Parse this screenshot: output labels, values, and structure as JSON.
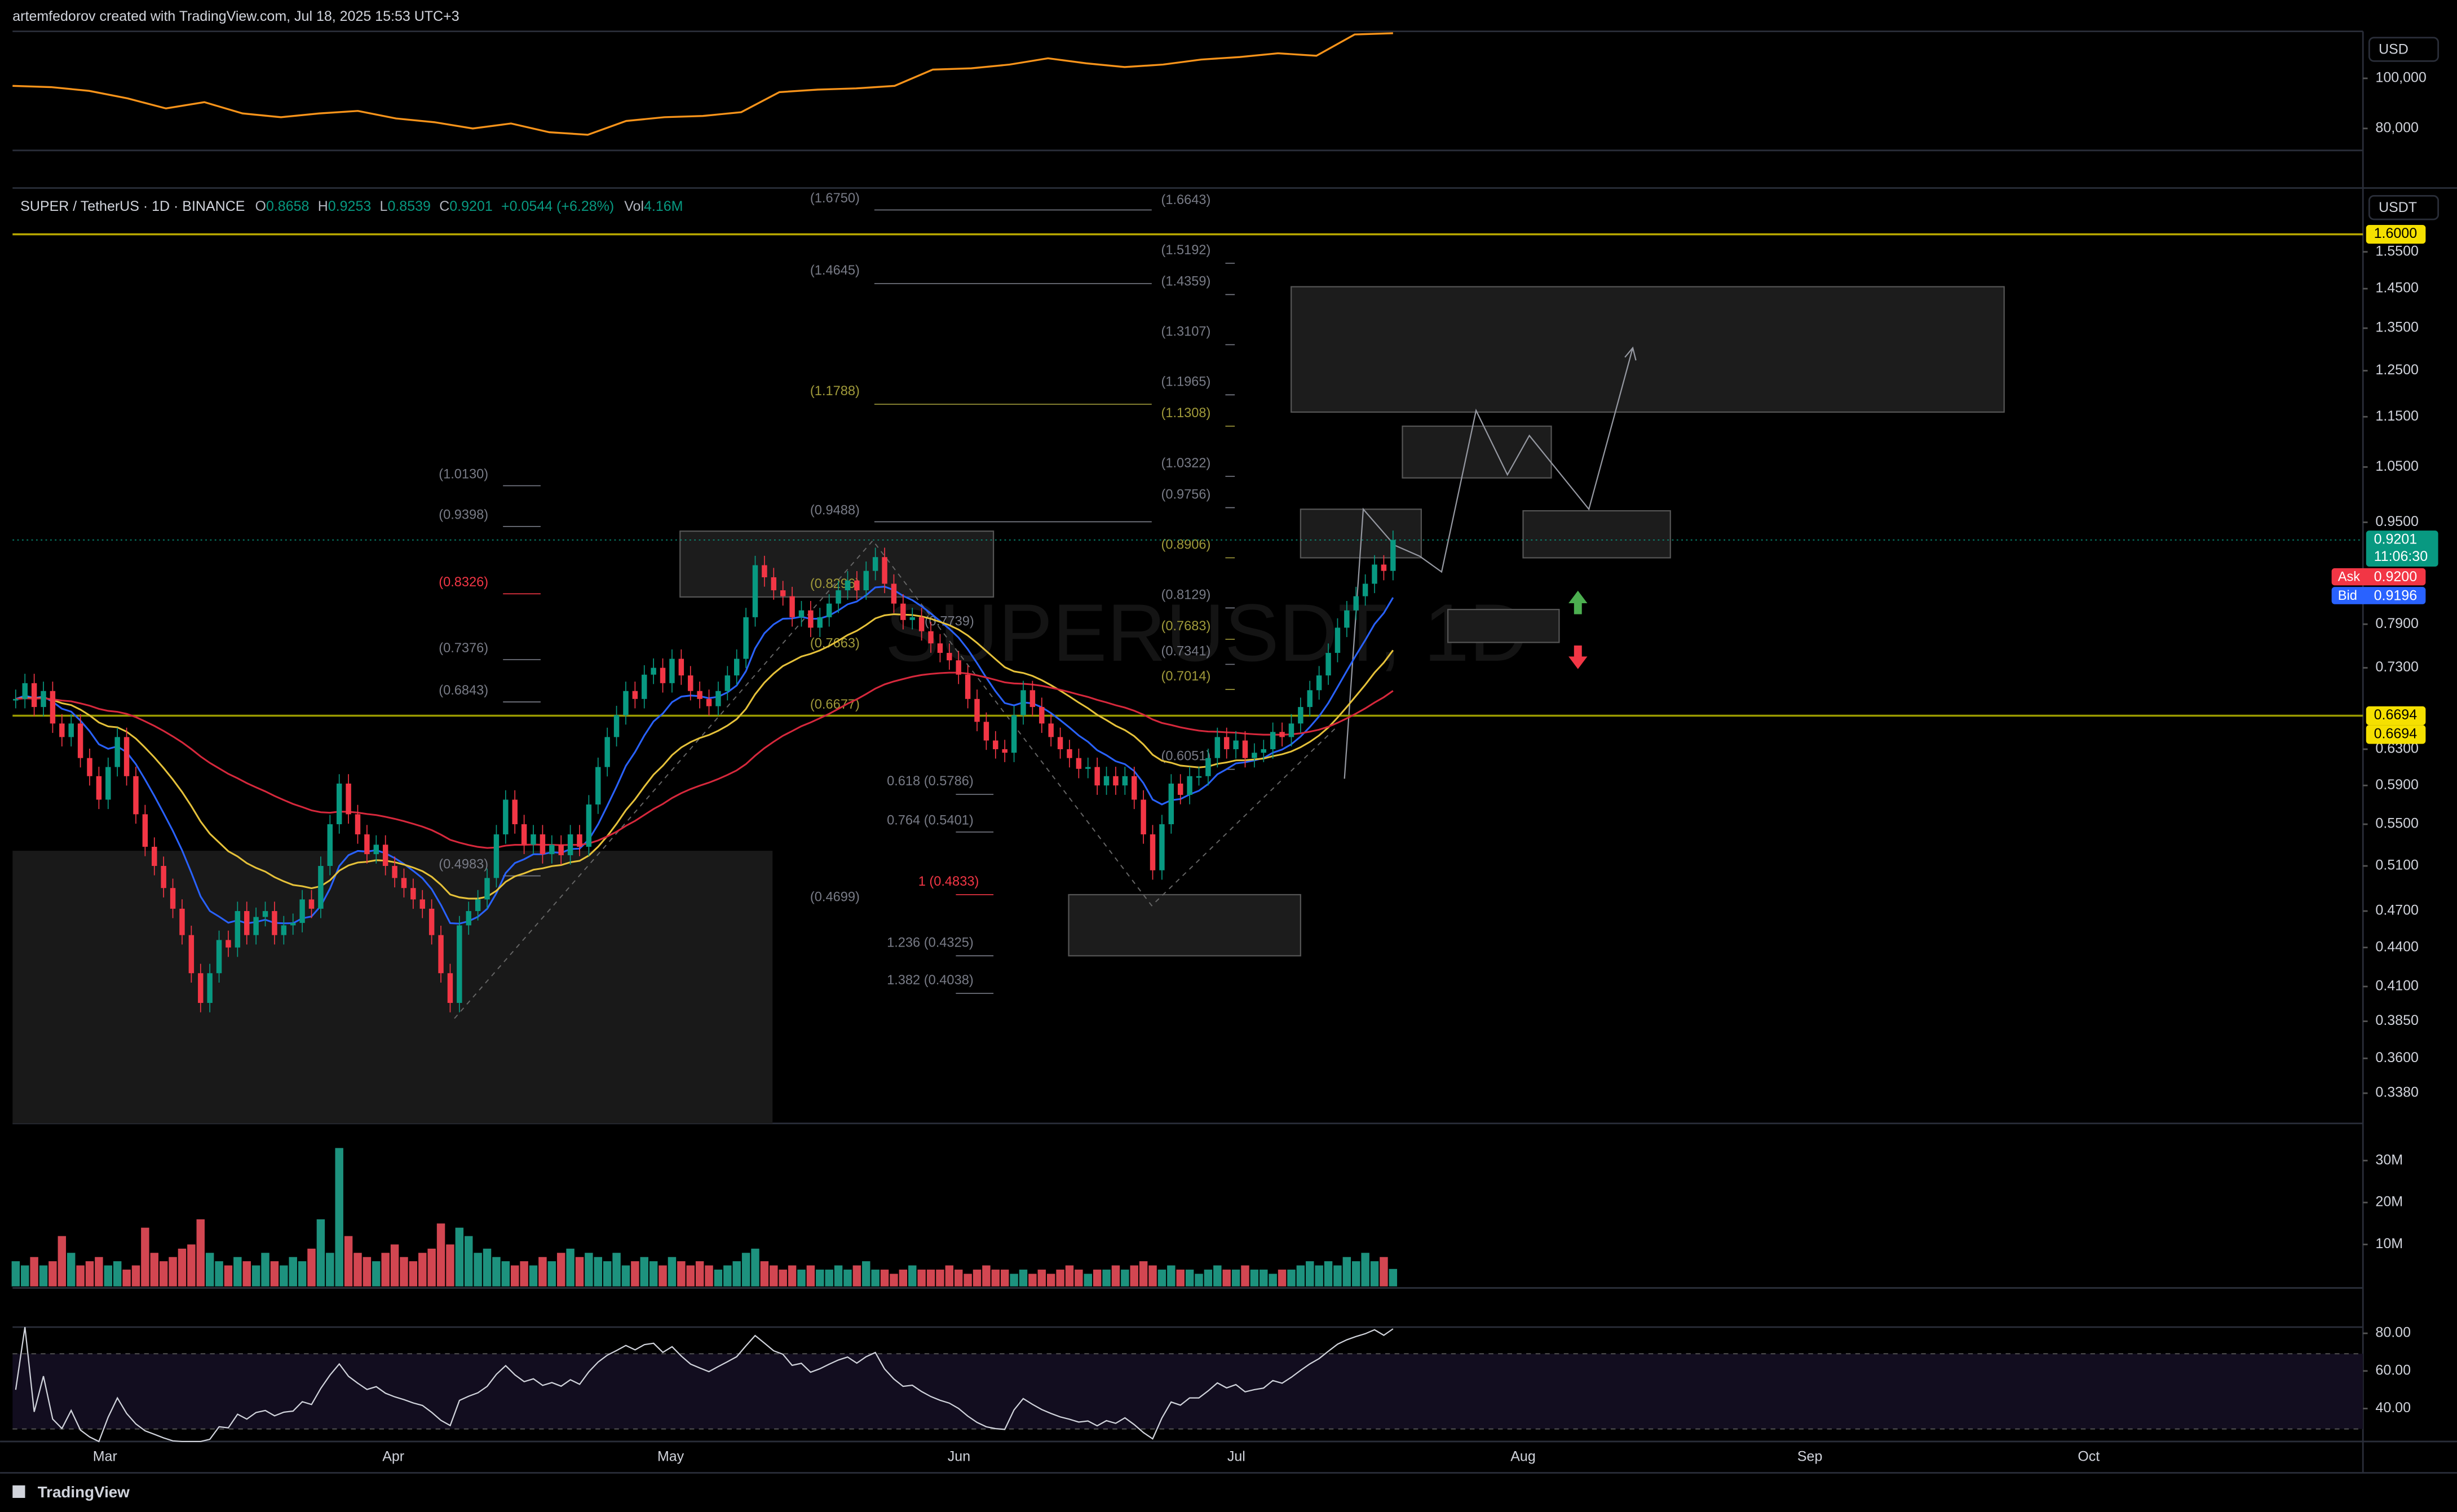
{
  "header": {
    "credit": "artemfedorov created with TradingView.com, Jul 18, 2025 15:53 UTC+3"
  },
  "compare": {
    "type": "line",
    "currency": "USD",
    "color": "#f7931a",
    "ylim": [
      71250,
      118750
    ],
    "yticks": [
      {
        "value": 100000,
        "label": "100,000"
      },
      {
        "value": 80000,
        "label": "80,000"
      }
    ],
    "values": [
      97000,
      96500,
      95000,
      92000,
      88000,
      90500,
      86000,
      84500,
      86000,
      87000,
      84000,
      82500,
      80000,
      82000,
      78500,
      77500,
      83000,
      84500,
      85000,
      86500,
      94500,
      95500,
      96000,
      97000,
      103500,
      104000,
      105500,
      108000,
      106000,
      104500,
      105500,
      107500,
      108500,
      110000,
      109000,
      117500,
      118000
    ]
  },
  "chart_data": {
    "type": "candlestick",
    "title": "SUPER / TetherUS · 1D · BINANCE",
    "legend": {
      "o": "O",
      "ov": "0.8658",
      "h": "H",
      "hv": "0.9253",
      "l": "L",
      "lv": "0.8539",
      "c": "C",
      "cv": "0.9201",
      "chg": "+0.0544 (+6.28%)",
      "vol": "Vol",
      "volv": "4.16M"
    },
    "watermark": "SUPERUSDT, 1D",
    "currency": "USDT",
    "log_scale": true,
    "up_color": "#089981",
    "down_color": "#f23645",
    "close": [
      0.69,
      0.71,
      0.68,
      0.7,
      0.66,
      0.644,
      0.66,
      0.62,
      0.6,
      0.575,
      0.61,
      0.644,
      0.6,
      0.56,
      0.528,
      0.51,
      0.49,
      0.472,
      0.45,
      0.42,
      0.398,
      0.42,
      0.446,
      0.44,
      0.47,
      0.45,
      0.465,
      0.47,
      0.45,
      0.458,
      0.46,
      0.48,
      0.472,
      0.51,
      0.55,
      0.592,
      0.56,
      0.54,
      0.521,
      0.53,
      0.51,
      0.499,
      0.49,
      0.48,
      0.472,
      0.45,
      0.42,
      0.398,
      0.458,
      0.47,
      0.48,
      0.499,
      0.54,
      0.575,
      0.55,
      0.53,
      0.54,
      0.521,
      0.53,
      0.52,
      0.54,
      0.528,
      0.57,
      0.61,
      0.644,
      0.67,
      0.7,
      0.69,
      0.721,
      0.73,
      0.71,
      0.742,
      0.72,
      0.7,
      0.69,
      0.681,
      0.7,
      0.72,
      0.742,
      0.8,
      0.879,
      0.86,
      0.84,
      0.831,
      0.8,
      0.81,
      0.785,
      0.8,
      0.82,
      0.84,
      0.855,
      0.84,
      0.87,
      0.892,
      0.85,
      0.82,
      0.796,
      0.8,
      0.78,
      0.763,
      0.75,
      0.74,
      0.721,
      0.69,
      0.662,
      0.64,
      0.63,
      0.626,
      0.67,
      0.701,
      0.68,
      0.66,
      0.644,
      0.63,
      0.62,
      0.608,
      0.61,
      0.59,
      0.6,
      0.59,
      0.6,
      0.575,
      0.54,
      0.506,
      0.55,
      0.592,
      0.58,
      0.6,
      0.6,
      0.62,
      0.644,
      0.63,
      0.64,
      0.62,
      0.626,
      0.63,
      0.65,
      0.644,
      0.66,
      0.68,
      0.701,
      0.72,
      0.75,
      0.785,
      0.81,
      0.831,
      0.85,
      0.88,
      0.87,
      0.9201
    ],
    "volume": [
      6,
      5,
      7,
      5,
      6,
      12,
      8,
      5,
      6,
      7,
      5,
      6,
      4,
      5,
      14,
      8,
      6,
      7,
      9,
      10,
      16,
      8,
      6,
      5,
      7,
      6,
      5,
      8,
      6,
      5,
      7,
      6,
      9,
      16,
      8,
      33,
      12,
      8,
      7,
      6,
      8,
      10,
      7,
      6,
      8,
      9,
      15,
      10,
      14,
      12,
      8,
      9,
      7,
      6,
      5,
      6,
      5,
      7,
      6,
      8,
      9,
      7,
      8,
      7,
      6,
      8,
      5,
      6,
      7,
      6,
      5,
      7,
      6,
      5,
      6,
      5,
      4,
      5,
      6,
      8,
      9,
      6,
      5,
      4,
      5,
      4,
      5,
      4,
      4,
      5,
      4,
      5,
      6,
      4,
      4,
      3,
      4,
      5,
      4,
      4,
      4,
      5,
      4,
      3,
      4,
      5,
      4,
      4,
      3,
      4,
      3,
      4,
      3,
      4,
      5,
      4,
      3,
      4,
      4,
      5,
      4,
      5,
      6,
      5,
      4,
      5,
      4,
      4,
      3,
      4,
      5,
      4,
      4,
      5,
      4,
      4,
      3,
      4,
      4,
      5,
      6,
      5,
      6,
      5,
      7,
      6,
      8,
      6,
      7,
      4.16
    ],
    "ylim": [
      0.32,
      1.73
    ],
    "yticks": [
      {
        "value": 1.55,
        "label": "1.5500"
      },
      {
        "value": 1.45,
        "label": "1.4500"
      },
      {
        "value": 1.35,
        "label": "1.3500"
      },
      {
        "value": 1.25,
        "label": "1.2500"
      },
      {
        "value": 1.15,
        "label": "1.1500"
      },
      {
        "value": 1.05,
        "label": "1.0500"
      },
      {
        "value": 0.95,
        "label": "0.9500"
      },
      {
        "value": 0.79,
        "label": "0.7900"
      },
      {
        "value": 0.73,
        "label": "0.7300"
      },
      {
        "value": 0.63,
        "label": "0.6300"
      },
      {
        "value": 0.59,
        "label": "0.5900"
      },
      {
        "value": 0.55,
        "label": "0.5500"
      },
      {
        "value": 0.51,
        "label": "0.5100"
      },
      {
        "value": 0.47,
        "label": "0.4700"
      },
      {
        "value": 0.44,
        "label": "0.4400"
      },
      {
        "value": 0.41,
        "label": "0.4100"
      },
      {
        "value": 0.385,
        "label": "0.3850"
      },
      {
        "value": 0.36,
        "label": "0.3600"
      },
      {
        "value": 0.338,
        "label": "0.3380"
      }
    ],
    "volume_ylim": [
      0,
      37
    ],
    "volume_ticks": [
      {
        "value": 30,
        "label": "30M"
      },
      {
        "value": 20,
        "label": "20M"
      },
      {
        "value": 10,
        "label": "10M"
      }
    ],
    "rsi_ylim": [
      22.5,
      83.3
    ],
    "rsi_ticks": [
      {
        "value": 80,
        "label": "80.00"
      },
      {
        "value": 60,
        "label": "60.00"
      },
      {
        "value": 40,
        "label": "40.00"
      }
    ],
    "xticks": [
      "Mar",
      "Apr",
      "May",
      "Jun",
      "Jul",
      "Aug",
      "Sep",
      "Oct"
    ],
    "levels": [
      {
        "value": 1.6,
        "label": "1.6000"
      },
      {
        "value": 0.6694,
        "label": "0.6694"
      }
    ],
    "last": {
      "value": 0.9201,
      "label": "0.9201",
      "timer": "11:06:30"
    },
    "ask": {
      "name": "Ask",
      "label": "0.9200"
    },
    "bid": {
      "name": "Bid",
      "label": "0.9196"
    },
    "level2_label": "0.6694",
    "fib_labels": [
      "(1.0130)",
      "(0.9398)",
      "(0.8326)",
      "(0.7376)",
      "(0.6843)",
      "(0.4983)",
      "(1.6750)",
      "(1.4645)",
      "(1.1788)",
      "(0.9488)",
      "(0.8296)",
      "(0.7739)",
      "(0.7663)",
      "(0.6677)",
      "0.618 (0.5786)",
      "0.764 (0.5401)",
      "1 (0.4833)",
      "(0.4699)",
      "1.236 (0.4325)",
      "1.382 (0.4038)",
      "(1.6643)",
      "(1.5192)",
      "(1.4359)",
      "(1.3107)",
      "(1.1965)",
      "(1.1308)",
      "(1.0322)",
      "(0.9756)",
      "(0.8906)",
      "(0.8129)",
      "(0.7683)",
      "(0.7341)",
      "(0.7014)",
      "(0.6051)"
    ]
  },
  "footer": {
    "brand": "TradingView"
  }
}
